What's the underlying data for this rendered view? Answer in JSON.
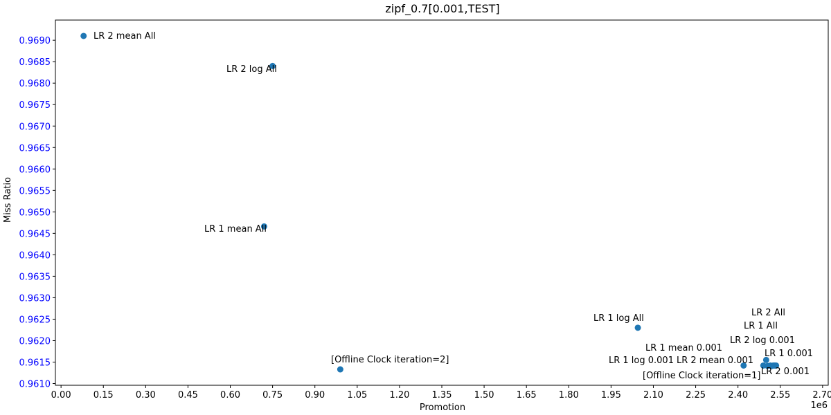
{
  "chart_data": {
    "type": "scatter",
    "title": "zipf_0.7[0.001,TEST]",
    "xlabel": "Promotion",
    "ylabel": "Miss Ratio",
    "x_offset_label": "1e6",
    "xlim": [
      -0.02,
      2.72
    ],
    "ylim": [
      0.96096,
      0.96947
    ],
    "x_ticks": [
      0.0,
      0.15,
      0.3,
      0.45,
      0.6,
      0.75,
      0.9,
      1.05,
      1.2,
      1.35,
      1.5,
      1.65,
      1.8,
      1.95,
      2.1,
      2.25,
      2.4,
      2.55,
      2.7
    ],
    "x_tick_labels": [
      "0.00",
      "0.15",
      "0.30",
      "0.45",
      "0.60",
      "0.75",
      "0.90",
      "1.05",
      "1.20",
      "1.35",
      "1.50",
      "1.65",
      "1.80",
      "1.95",
      "2.10",
      "2.25",
      "2.40",
      "2.55",
      "2.70"
    ],
    "y_ticks": [
      0.961,
      0.9615,
      0.962,
      0.9625,
      0.963,
      0.9635,
      0.964,
      0.9645,
      0.965,
      0.9655,
      0.966,
      0.9665,
      0.967,
      0.9675,
      0.968,
      0.9685,
      0.969
    ],
    "y_tick_labels": [
      "0.9610",
      "0.9615",
      "0.9620",
      "0.9625",
      "0.9630",
      "0.9635",
      "0.9640",
      "0.9645",
      "0.9650",
      "0.9655",
      "0.9660",
      "0.9665",
      "0.9670",
      "0.9675",
      "0.9680",
      "0.9685",
      "0.9690"
    ],
    "grid": false,
    "legend": "none",
    "marker_color": "#1f77b4",
    "y_tick_color": "#0000ff",
    "points": [
      {
        "x": 0.08,
        "y": 0.9691,
        "label": "LR 2 mean All"
      },
      {
        "x": 0.75,
        "y": 0.9684,
        "label": "LR 2 log All"
      },
      {
        "x": 0.72,
        "y": 0.96466,
        "label": "LR 1 mean All"
      },
      {
        "x": 2.045,
        "y": 0.9623,
        "label": "LR 1 log All"
      },
      {
        "x": 0.99,
        "y": 0.96133,
        "label": "[Offline Clock iteration=2]"
      },
      {
        "x": 2.42,
        "y": 0.96142,
        "label": "LR 1 log 0.001"
      },
      {
        "x": 2.5,
        "y": 0.96155,
        "label": "LR 1 mean 0.001"
      },
      {
        "x": 2.49,
        "y": 0.96142,
        "label": "LR 2 mean 0.001"
      },
      {
        "x": 2.515,
        "y": 0.96142,
        "label": "LR 2 log 0.001"
      },
      {
        "x": 2.525,
        "y": 0.96142,
        "label": "LR 1 All"
      },
      {
        "x": 2.53,
        "y": 0.96142,
        "label": "LR 2 All"
      },
      {
        "x": 2.535,
        "y": 0.96142,
        "label": "LR 1 0.001"
      },
      {
        "x": 2.52,
        "y": 0.96141,
        "label": "LR 2 0.001"
      },
      {
        "x": 2.505,
        "y": 0.96141,
        "label": "[Offline Clock iteration=1]"
      }
    ]
  }
}
